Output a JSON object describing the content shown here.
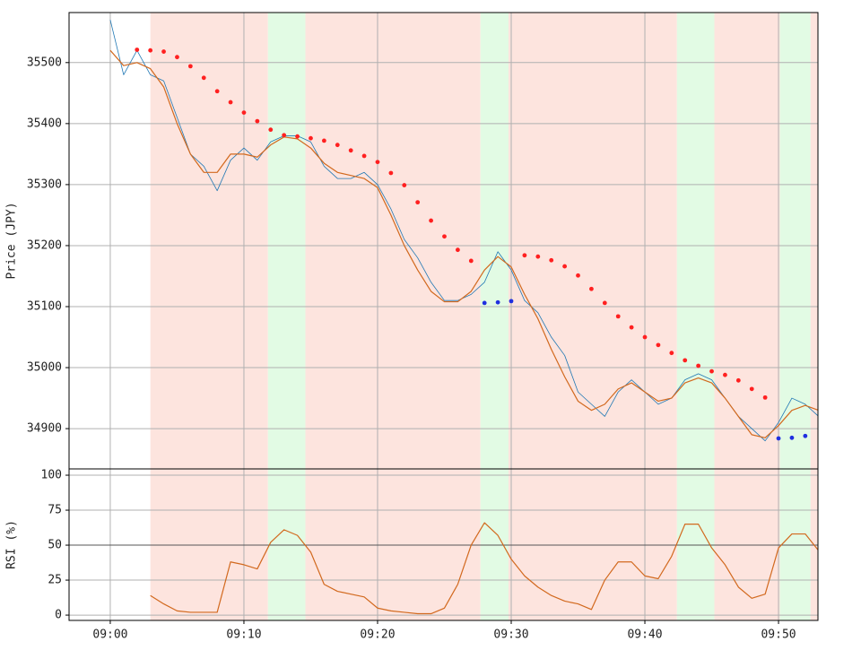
{
  "chart_data": [
    {
      "type": "line",
      "ylabel": "Price (JPY)",
      "xlim": [
        "08:56:55",
        "09:52:57"
      ],
      "ylim": [
        34834,
        35582
      ],
      "yticks": [
        34900,
        35000,
        35100,
        35200,
        35300,
        35400,
        35500
      ],
      "grid": true,
      "regions": [
        {
          "start": "09:03:00",
          "end": "09:11:48",
          "color": "#fde4de"
        },
        {
          "start": "09:11:48",
          "end": "09:14:36",
          "color": "#e2fbe4"
        },
        {
          "start": "09:14:36",
          "end": "09:27:42",
          "color": "#fde4de"
        },
        {
          "start": "09:27:42",
          "end": "09:29:48",
          "color": "#e2fbe4"
        },
        {
          "start": "09:29:48",
          "end": "09:42:24",
          "color": "#fde4de"
        },
        {
          "start": "09:42:24",
          "end": "09:45:12",
          "color": "#e2fbe4"
        },
        {
          "start": "09:45:12",
          "end": "09:50:06",
          "color": "#fde4de"
        },
        {
          "start": "09:50:06",
          "end": "09:52:24",
          "color": "#e2fbe4"
        },
        {
          "start": "09:52:24",
          "end": "09:52:57",
          "color": "#fde4de"
        }
      ],
      "x": [
        "09:00",
        "09:01",
        "09:02",
        "09:03",
        "09:04",
        "09:05",
        "09:06",
        "09:07",
        "09:08",
        "09:09",
        "09:10",
        "09:11",
        "09:12",
        "09:13",
        "09:14",
        "09:15",
        "09:16",
        "09:17",
        "09:18",
        "09:19",
        "09:20",
        "09:21",
        "09:22",
        "09:23",
        "09:24",
        "09:25",
        "09:26",
        "09:27",
        "09:28",
        "09:29",
        "09:30",
        "09:31",
        "09:32",
        "09:33",
        "09:34",
        "09:35",
        "09:36",
        "09:37",
        "09:38",
        "09:39",
        "09:40",
        "09:41",
        "09:42",
        "09:43",
        "09:44",
        "09:45",
        "09:46",
        "09:47",
        "09:48",
        "09:49",
        "09:50",
        "09:51",
        "09:52",
        "09:53"
      ],
      "series": [
        {
          "color": "#1f77b4",
          "style": "line",
          "width": 0.8,
          "values": [
            35570,
            35480,
            35520,
            35480,
            35470,
            35410,
            35350,
            35330,
            35290,
            35340,
            35360,
            35340,
            35370,
            35380,
            35380,
            35370,
            35330,
            35310,
            35310,
            35320,
            35300,
            35260,
            35210,
            35180,
            35140,
            35110,
            35110,
            35120,
            35140,
            35190,
            35160,
            35110,
            35090,
            35050,
            35020,
            34960,
            34940,
            34920,
            34960,
            34980,
            34960,
            34940,
            34950,
            34980,
            34990,
            34980,
            34950,
            34920,
            34900,
            34880,
            34910,
            34950,
            34940,
            34920
          ]
        },
        {
          "color": "#d2691e",
          "style": "line",
          "width": 1.2,
          "values": [
            35520,
            35495,
            35500,
            35490,
            35460,
            35400,
            35350,
            35320,
            35320,
            35350,
            35350,
            35345,
            35365,
            35378,
            35375,
            35360,
            35335,
            35320,
            35315,
            35310,
            35295,
            35250,
            35200,
            35160,
            35125,
            35108,
            35108,
            35125,
            35160,
            35182,
            35165,
            35120,
            35080,
            35030,
            34985,
            34945,
            34930,
            34940,
            34965,
            34975,
            34960,
            34945,
            34950,
            34975,
            34983,
            34975,
            34950,
            34920,
            34890,
            34885,
            34905,
            34930,
            34938,
            34930
          ]
        },
        {
          "color": "#ff2020",
          "style": "dot",
          "values": [
            null,
            null,
            35521,
            35520,
            35518,
            35509,
            35494,
            35475,
            35453,
            35435,
            35418,
            35404,
            35390,
            35381,
            35379,
            35376,
            35372,
            35365,
            35356,
            35347,
            35337,
            35319,
            35299,
            35271,
            35241,
            35215,
            35193,
            35175,
            null,
            null,
            null,
            35184,
            35182,
            35176,
            35166,
            35151,
            35129,
            35106,
            35084,
            35066,
            35050,
            35037,
            35024,
            35012,
            35003,
            34994,
            34988,
            34979,
            34965,
            34951,
            null,
            null,
            null,
            null
          ]
        },
        {
          "color": "#2030e0",
          "style": "dot",
          "values": [
            null,
            null,
            null,
            null,
            null,
            null,
            null,
            null,
            null,
            null,
            null,
            null,
            null,
            null,
            null,
            null,
            null,
            null,
            null,
            null,
            null,
            null,
            null,
            null,
            null,
            null,
            null,
            null,
            35106,
            35107,
            35109,
            null,
            null,
            null,
            null,
            null,
            null,
            null,
            null,
            null,
            null,
            null,
            null,
            null,
            null,
            null,
            null,
            null,
            null,
            null,
            34884,
            34885,
            34888,
            null
          ]
        }
      ]
    },
    {
      "type": "line",
      "ylabel": "RSI (%)",
      "xlim": [
        "08:56:55",
        "09:52:57"
      ],
      "ylim": [
        -3.8,
        104.5
      ],
      "yticks": [
        0,
        25,
        50,
        75,
        100
      ],
      "grid": true,
      "hline": 50,
      "xticks": [
        {
          "value": "09:00",
          "label": "09:00"
        },
        {
          "value": "09:10",
          "label": "09:10"
        },
        {
          "value": "09:20",
          "label": "09:20"
        },
        {
          "value": "09:30",
          "label": "09:30"
        },
        {
          "value": "09:40",
          "label": "09:40"
        },
        {
          "value": "09:50",
          "label": "09:50"
        }
      ],
      "x": [
        "09:03",
        "09:04",
        "09:05",
        "09:06",
        "09:07",
        "09:08",
        "09:09",
        "09:10",
        "09:11",
        "09:12",
        "09:13",
        "09:14",
        "09:15",
        "09:16",
        "09:17",
        "09:18",
        "09:19",
        "09:20",
        "09:21",
        "09:22",
        "09:23",
        "09:24",
        "09:25",
        "09:26",
        "09:27",
        "09:28",
        "09:29",
        "09:30",
        "09:31",
        "09:32",
        "09:33",
        "09:34",
        "09:35",
        "09:36",
        "09:37",
        "09:38",
        "09:39",
        "09:40",
        "09:41",
        "09:42",
        "09:43",
        "09:44",
        "09:45",
        "09:46",
        "09:47",
        "09:48",
        "09:49",
        "09:50",
        "09:51",
        "09:52",
        "09:53"
      ],
      "series": [
        {
          "color": "#d2691e",
          "style": "line",
          "width": 1.2,
          "values": [
            14,
            8,
            3,
            2,
            2,
            2,
            38,
            36,
            33,
            52,
            61,
            57,
            45,
            22,
            17,
            15,
            13,
            5,
            3,
            2,
            1,
            1,
            5,
            22,
            50,
            66,
            57,
            40,
            28,
            20,
            14,
            10,
            8,
            4,
            25,
            38,
            38,
            28,
            26,
            42,
            65,
            65,
            48,
            36,
            20,
            12,
            15,
            48,
            58,
            58,
            46
          ]
        }
      ]
    }
  ]
}
